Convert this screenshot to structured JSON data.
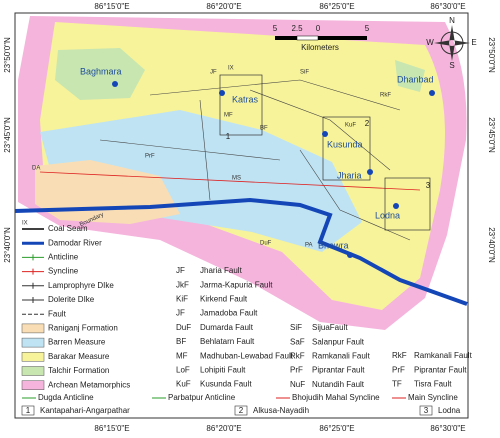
{
  "axes": {
    "top": [
      "86°15'0\"E",
      "86°20'0\"E",
      "86°25'0\"E",
      "86°30'0\"E"
    ],
    "bottom": [
      "86°15'0\"E",
      "86°20'0\"E",
      "86°25'0\"E",
      "86°30'0\"E"
    ],
    "left": [
      "23°50'0\"N",
      "23°45'0\"N",
      "23°40'0\"N"
    ],
    "right": [
      "23°50'0\"N",
      "23°45'0\"N",
      "23°40'0\"N"
    ]
  },
  "scale": {
    "ticks": [
      "5",
      "2.5",
      "0",
      "5"
    ],
    "unit": "Kilometers"
  },
  "compass": [
    "N",
    "E",
    "S",
    "W"
  ],
  "places": [
    "Dhanbad",
    "Baghmara",
    "Katras",
    "Kusunda",
    "Jharia",
    "Lodna",
    "Bhowra"
  ],
  "map_labels": [
    "SiF",
    "RkF",
    "KuF",
    "JF",
    "MF",
    "BF",
    "PrF",
    "MS",
    "DuF",
    "PA",
    "DA",
    "Boundary",
    "IX"
  ],
  "boxes": [
    "1",
    "2",
    "3"
  ],
  "legend": {
    "symbols": [
      "Coal Seam",
      "Damodar River",
      "Anticline",
      "Syncline",
      "Lamprophyre DIke",
      "Dolerite DIke",
      "Fault"
    ],
    "seam_code": "IX",
    "units": [
      {
        "name": "Raniganj Formation",
        "color": "#f9deb5"
      },
      {
        "name": "Barren Measure",
        "color": "#bfe3f3"
      },
      {
        "name": "Barakar Measure",
        "color": "#f7f39a"
      },
      {
        "name": "Talchir Formation",
        "color": "#c8e6b0"
      },
      {
        "name": "Archean Metamorphics",
        "color": "#f5b4dc"
      }
    ],
    "faults_a": [
      {
        "code": "JF",
        "name": "Jharia Fault"
      },
      {
        "code": "JkF",
        "name": "Jarma-Kapuria Fault"
      },
      {
        "code": "KiF",
        "name": "Kirkend Fault"
      },
      {
        "code": "JF",
        "name": "Jamadoba Fault"
      },
      {
        "code": "DuF",
        "name": "Dumarda Fault"
      },
      {
        "code": "BF",
        "name": "Behlatarn Fault"
      },
      {
        "code": "MF",
        "name": "Madhuban-Lewabad Fault"
      },
      {
        "code": "LoF",
        "name": "Lohipiti Fault"
      },
      {
        "code": "KuF",
        "name": "Kusunda Fault"
      }
    ],
    "faults_b": [
      {
        "code": "SiF",
        "name": "SijuaFault"
      },
      {
        "code": "SaF",
        "name": "Salanpur Fault"
      },
      {
        "code": "RkF",
        "name": "Ramkanali Fault"
      },
      {
        "code": "PrF",
        "name": "Piprantar Fault"
      },
      {
        "code": "NuF",
        "name": "Nutandih Fault"
      }
    ],
    "faults_c": [
      {
        "code": "RkF",
        "name": "Ramkanali Fault"
      },
      {
        "code": "PrF",
        "name": "Piprantar Fault"
      },
      {
        "code": "TF",
        "name": "Tisra Fault"
      }
    ],
    "structures": [
      "Dugda Anticline",
      "Parbatpur Anticline",
      "Bhojudih Mahal Syncline",
      "Main Syncline"
    ],
    "areas": [
      {
        "num": "1",
        "name": "Kantapahari-Angarpathar"
      },
      {
        "num": "2",
        "name": "Alkusa-Nayadih"
      },
      {
        "num": "3",
        "name": "Lodna"
      }
    ]
  }
}
